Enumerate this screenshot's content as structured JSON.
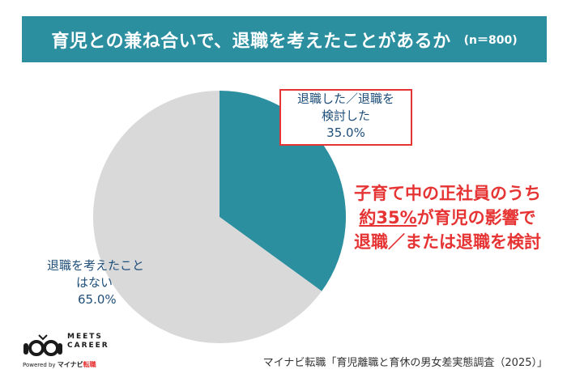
{
  "header": {
    "title": "育児との兼ね合いで、退職を考えたことがあるか",
    "sample_size": "(n＝800)"
  },
  "chart_data": {
    "type": "pie",
    "slices": [
      {
        "label_lines": [
          "退職した／退職を",
          "検討した"
        ],
        "value_text": "35.0%",
        "value": 35.0,
        "color": "#2b8fa0"
      },
      {
        "label_lines": [
          "退職を考えたこと",
          "はない"
        ],
        "value_text": "65.0%",
        "value": 65.0,
        "color": "#d9d9d9"
      }
    ],
    "start_angle_deg": 0,
    "direction": "clockwise",
    "highlight_box_color": "#e63333"
  },
  "callout": {
    "line1": "子育て中の正社員のうち",
    "line2_highlight": "約35%",
    "line2_rest": "が育児の影響で",
    "line3": "退職／または退職を検討"
  },
  "logo": {
    "line1": "MEETS",
    "line2": "CAREER",
    "powered_by": "Powered by",
    "brand": "マイナビ",
    "brand_suffix": "転職",
    "icon": "meets-career-logo-icon"
  },
  "source": "マイナビ転職「育児離職と育休の男女差実態調査（2025）」"
}
